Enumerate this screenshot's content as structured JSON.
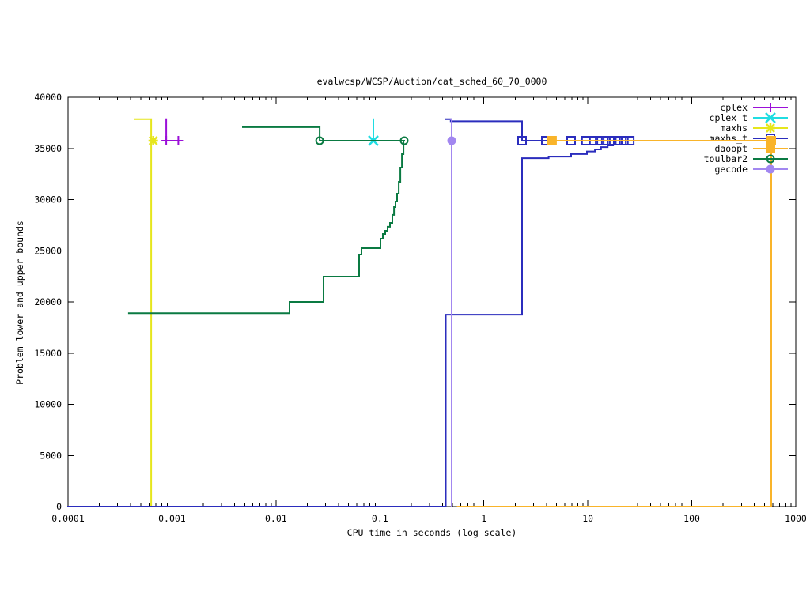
{
  "chart_data": {
    "type": "line",
    "title": "evalwcsp/WCSP/Auction/cat_sched_60_70_0000",
    "xlabel": "CPU time in seconds (log scale)",
    "ylabel": "Problem lower and upper bounds",
    "xscale": "log",
    "xlim": [
      0.0001,
      1000
    ],
    "ylim": [
      0,
      40000
    ],
    "xticks": [
      "0.0001",
      "0.001",
      "0.01",
      "0.1",
      "1",
      "10",
      "100",
      "1000"
    ],
    "yticks": [
      "0",
      "5000",
      "10000",
      "15000",
      "20000",
      "25000",
      "30000",
      "35000",
      "40000"
    ],
    "grid": false,
    "legend_position": "top-right",
    "series": [
      {
        "name": "cplex",
        "color": "#9b0fd8",
        "marker": "plus",
        "upper": [
          [
            0.00088,
            37850
          ],
          [
            0.00088,
            35750
          ],
          [
            0.00115,
            35750
          ]
        ],
        "markers": [
          [
            0.00088,
            35750
          ],
          [
            0.00115,
            35750
          ]
        ]
      },
      {
        "name": "cplex_t",
        "color": "#20dde2",
        "marker": "cross",
        "upper": [
          [
            0.0865,
            37850
          ],
          [
            0.0865,
            35750
          ]
        ],
        "markers": [
          [
            0.0865,
            35750
          ]
        ]
      },
      {
        "name": "maxhs",
        "color": "#e6e61c",
        "marker": "star",
        "upper": [
          [
            0.000436,
            37850
          ],
          [
            0.00063,
            35750
          ],
          [
            0.00066,
            35750
          ]
        ],
        "lower": [
          [
            0.00063,
            0
          ],
          [
            0.00063,
            35750
          ]
        ],
        "markers": [
          [
            0.00066,
            35750
          ]
        ]
      },
      {
        "name": "maxhs_t",
        "color": "#2b2dbd",
        "marker": "open-square",
        "upper": [
          [
            0.43,
            37850
          ],
          [
            0.48,
            37650
          ],
          [
            2.33,
            35750
          ],
          [
            27.1,
            35750
          ]
        ],
        "lower": [
          [
            0.0001,
            0
          ],
          [
            0.43,
            18760
          ],
          [
            2.33,
            34050
          ],
          [
            4.2,
            34200
          ],
          [
            6.9,
            34450
          ],
          [
            9.8,
            34700
          ],
          [
            11.7,
            34900
          ],
          [
            13.4,
            35130
          ],
          [
            15.5,
            35290
          ],
          [
            17.5,
            35370
          ],
          [
            27.1,
            35370
          ]
        ],
        "markers": [
          [
            2.33,
            35750
          ],
          [
            3.94,
            35750
          ],
          [
            6.9,
            35750
          ],
          [
            9.6,
            35750
          ],
          [
            11.3,
            35750
          ],
          [
            13.0,
            35750
          ],
          [
            14.9,
            35750
          ],
          [
            17.0,
            35750
          ],
          [
            19.4,
            35750
          ],
          [
            22.2,
            35750
          ],
          [
            25.3,
            35750
          ]
        ]
      },
      {
        "name": "daoopt",
        "color": "#f9b42a",
        "marker": "filled-square",
        "upper": [
          [
            4.53,
            35750
          ],
          [
            581,
            35750
          ]
        ],
        "lower": [
          [
            0.56,
            0
          ],
          [
            581,
            35750
          ]
        ],
        "markers": [
          [
            4.53,
            35750
          ],
          [
            581,
            35750
          ]
        ]
      },
      {
        "name": "toulbar2",
        "color": "#0a7a42",
        "marker": "open-circle",
        "upper": [
          [
            0.0048,
            37070
          ],
          [
            0.0263,
            35750
          ],
          [
            0.1713,
            35750
          ]
        ],
        "lower": [
          [
            0.000385,
            18900
          ],
          [
            0.0135,
            20000
          ],
          [
            0.0287,
            22470
          ],
          [
            0.0631,
            24630
          ],
          [
            0.0665,
            25250
          ],
          [
            0.1013,
            26180
          ],
          [
            0.1068,
            26640
          ],
          [
            0.1125,
            26950
          ],
          [
            0.1186,
            27340
          ],
          [
            0.125,
            27720
          ],
          [
            0.1318,
            28500
          ],
          [
            0.1366,
            29270
          ],
          [
            0.1413,
            29810
          ],
          [
            0.1464,
            30580
          ],
          [
            0.1517,
            31740
          ],
          [
            0.1571,
            33130
          ],
          [
            0.1628,
            34440
          ],
          [
            0.1686,
            35750
          ],
          [
            0.1713,
            35750
          ]
        ],
        "markers": [
          [
            0.0263,
            35750
          ],
          [
            0.1713,
            35750
          ]
        ]
      },
      {
        "name": "gecode",
        "color": "#a287f0",
        "marker": "filled-circle",
        "upper": [
          [
            0.48,
            37850
          ],
          [
            0.49,
            35750
          ]
        ],
        "lower": [
          [
            0.49,
            0
          ],
          [
            0.49,
            35750
          ]
        ],
        "markers": [
          [
            0.49,
            35750
          ]
        ]
      }
    ]
  }
}
